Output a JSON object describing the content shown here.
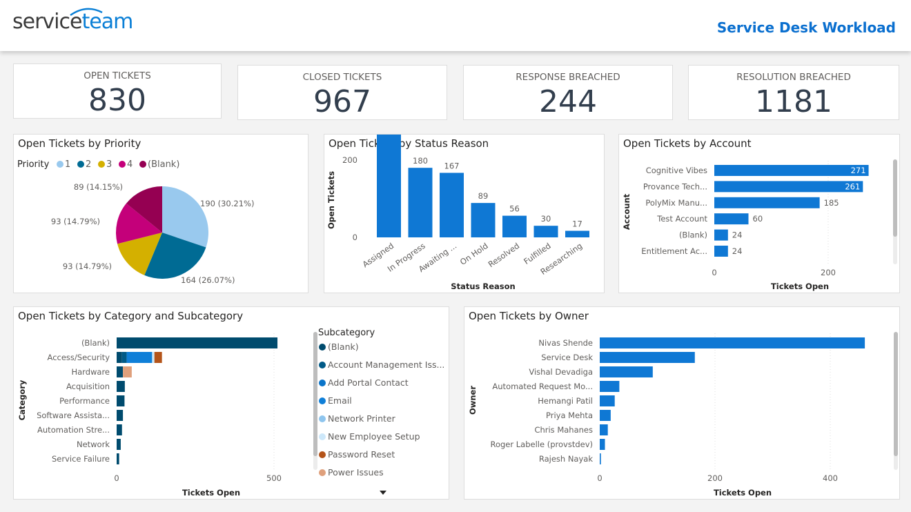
{
  "header": {
    "logo_service": "service",
    "logo_team": "team",
    "title": "Service Desk Workload"
  },
  "kpis": [
    {
      "label": "OPEN TICKETS",
      "value": "830"
    },
    {
      "label": "CLOSED TICKETS",
      "value": "967"
    },
    {
      "label": "RESPONSE BREACHED",
      "value": "244"
    },
    {
      "label": "RESOLUTION BREACHED",
      "value": "1181"
    }
  ],
  "colors": {
    "accent": "#0a6fcf",
    "bar": "#0f78d4",
    "dark": "#004b6e"
  },
  "chart_data": [
    {
      "id": "priority",
      "type": "pie",
      "title": "Open Tickets by Priority",
      "legend_title": "Priority",
      "legend_placement": "top-left",
      "slices": [
        {
          "name": "1",
          "value": 190,
          "label": "190 (30.21%)",
          "color": "#99c9ee"
        },
        {
          "name": "2",
          "value": 164,
          "label": "164 (26.07%)",
          "color": "#006b94"
        },
        {
          "name": "3",
          "value": 93,
          "label": "93 (14.79%)",
          "color": "#d4b000"
        },
        {
          "name": "4",
          "value": 93,
          "label": "93 (14.79%)",
          "color": "#c4007a"
        },
        {
          "name": "(Blank)",
          "value": 89,
          "label": "89 (14.15%)",
          "color": "#950052"
        }
      ]
    },
    {
      "id": "status",
      "type": "bar",
      "title": "Open Tickets by Status Reason",
      "xlabel": "Status Reason",
      "ylabel": "Open Tickets",
      "categories": [
        "Assigned",
        "In Progress",
        "Awaiting ...",
        "On Hold",
        "Resolved",
        "Fulfilled",
        "Researching"
      ],
      "values": [
        291,
        180,
        167,
        89,
        56,
        30,
        17
      ],
      "ylim": [
        0,
        320
      ],
      "yticks": [
        0,
        200
      ]
    },
    {
      "id": "account",
      "type": "bar",
      "orientation": "horizontal",
      "title": "Open Tickets by Account",
      "xlabel": "Tickets Open",
      "ylabel": "Account",
      "categories": [
        "Cognitive Vibes",
        "Provance Tech...",
        "PolyMix Manu...",
        "Test Account",
        "(Blank)",
        "Entitlement Ac..."
      ],
      "values": [
        271,
        261,
        185,
        60,
        24,
        24
      ],
      "xticks": [
        0,
        200
      ]
    },
    {
      "id": "category",
      "type": "bar",
      "orientation": "horizontal",
      "stacked": true,
      "title": "Open Tickets by Category and Subcategory",
      "xlabel": "Tickets Open",
      "ylabel": "Category",
      "legend_title": "Subcategory",
      "legend_placement": "right",
      "legend": [
        {
          "name": "(Blank)",
          "color": "#004b6e"
        },
        {
          "name": "Account Management Iss...",
          "color": "#005a87"
        },
        {
          "name": "Add Portal Contact",
          "color": "#0a74c9"
        },
        {
          "name": "Email",
          "color": "#0f7fd8"
        },
        {
          "name": "Network Printer",
          "color": "#8ec5ee"
        },
        {
          "name": "New Employee Setup",
          "color": "#cde8fa"
        },
        {
          "name": "Password Reset",
          "color": "#b4541a"
        },
        {
          "name": "Power Issues",
          "color": "#dfa07c"
        }
      ],
      "categories": [
        "(Blank)",
        "Access/Security",
        "Hardware",
        "Acquisition",
        "Performance",
        "Software Assista...",
        "Automation Stre...",
        "Network",
        "Service Failure"
      ],
      "stacks": [
        [
          {
            "s": "(Blank)",
            "v": 511
          }
        ],
        [
          {
            "s": "(Blank)",
            "v": 17
          },
          {
            "s": "Account Management Iss...",
            "v": 15
          },
          {
            "s": "Email",
            "v": 80
          },
          {
            "s": "Network Printer",
            "v": 2
          },
          {
            "s": "New Employee Setup",
            "v": 6
          },
          {
            "s": "Password Reset",
            "v": 24
          }
        ],
        [
          {
            "s": "(Blank)",
            "v": 20
          },
          {
            "s": "Power Issues",
            "v": 28
          }
        ],
        [
          {
            "s": "(Blank)",
            "v": 26
          }
        ],
        [
          {
            "s": "(Blank)",
            "v": 25
          }
        ],
        [
          {
            "s": "(Blank)",
            "v": 20
          }
        ],
        [
          {
            "s": "(Blank)",
            "v": 17
          }
        ],
        [
          {
            "s": "(Blank)",
            "v": 13
          }
        ],
        [
          {
            "s": "(Blank)",
            "v": 8
          }
        ]
      ],
      "xticks": [
        0,
        500
      ]
    },
    {
      "id": "owner",
      "type": "bar",
      "orientation": "horizontal",
      "title": "Open Tickets by Owner",
      "xlabel": "Tickets Open",
      "ylabel": "Owner",
      "categories": [
        "Nivas Shende",
        "Service Desk",
        "Vishal Devadiga",
        "Automated Request Mo...",
        "Hemangi Patil",
        "Priya Mehta",
        "Chris Mahanes",
        "Roger Labelle (provstdev)",
        "Rajesh Nayak"
      ],
      "values": [
        460,
        165,
        92,
        34,
        26,
        19,
        14,
        9,
        2
      ],
      "xticks": [
        0,
        200,
        400
      ]
    }
  ]
}
